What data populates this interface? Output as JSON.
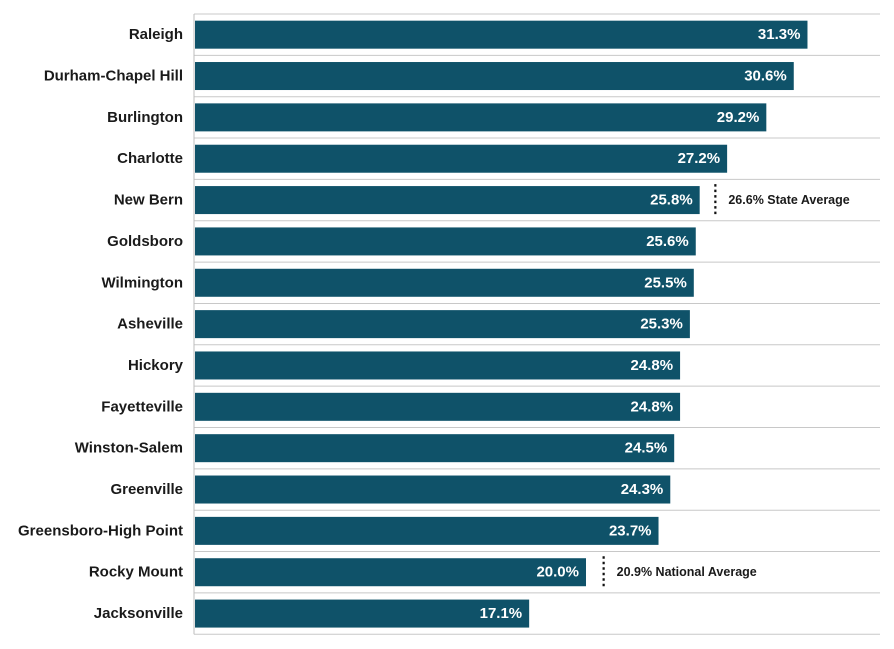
{
  "chart_data": {
    "type": "bar",
    "orientation": "horizontal",
    "categories": [
      "Raleigh",
      "Durham-Chapel Hill",
      "Burlington",
      "Charlotte",
      "New Bern",
      "Goldsboro",
      "Wilmington",
      "Asheville",
      "Hickory",
      "Fayetteville",
      "Winston-Salem",
      "Greenville",
      "Greensboro-High Point",
      "Rocky Mount",
      "Jacksonville"
    ],
    "values": [
      31.3,
      30.6,
      29.2,
      27.2,
      25.8,
      25.6,
      25.5,
      25.3,
      24.8,
      24.8,
      24.5,
      24.3,
      23.7,
      20.0,
      17.1
    ],
    "value_labels": [
      "31.3%",
      "30.6%",
      "29.2%",
      "27.2%",
      "25.8%",
      "25.6%",
      "25.5%",
      "25.3%",
      "24.8%",
      "24.8%",
      "24.5%",
      "24.3%",
      "23.7%",
      "20.0%",
      "17.1%"
    ],
    "xlim": [
      0,
      35
    ],
    "grid": true,
    "bar_color": "#0f5269",
    "reference_lines": [
      {
        "value": 26.6,
        "label": "26.6% State Average",
        "row": "New Bern"
      },
      {
        "value": 20.9,
        "label": "20.9% National Average",
        "row": "Rocky Mount"
      }
    ]
  }
}
